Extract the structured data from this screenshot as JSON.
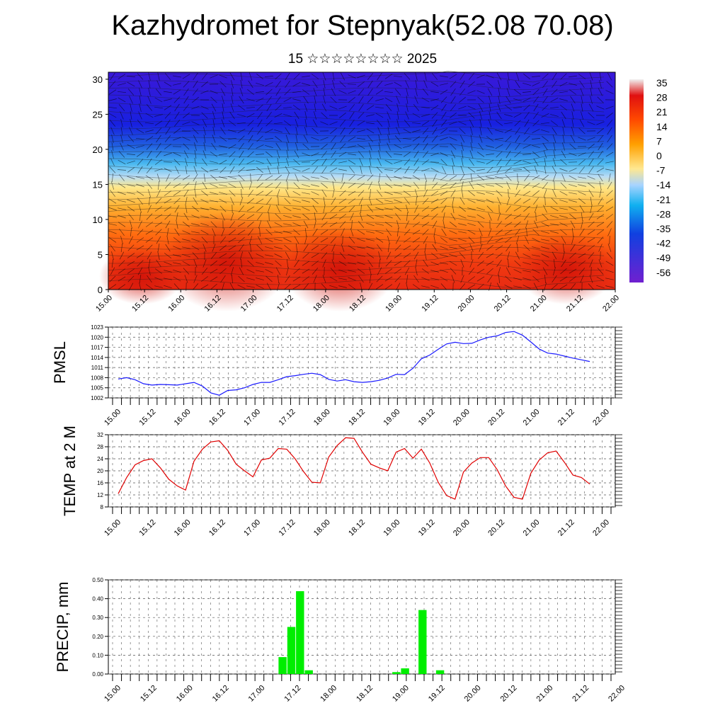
{
  "title": "Kazhydromet for Stepnyak(52.08 70.08)",
  "subtitle": "15 ☆☆☆☆☆☆☆☆ 2025",
  "x_tick_labels": [
    "15.00",
    "15.12",
    "16.00",
    "16.12",
    "17.00",
    "17.12",
    "18.00",
    "18.12",
    "19.00",
    "19.12",
    "20.00",
    "20.12",
    "21.00",
    "21.12",
    "22.00"
  ],
  "chart_data": [
    {
      "type": "heatmap",
      "name": "cross-section",
      "ylim": [
        0,
        31
      ],
      "y_ticks": [
        "0",
        "5",
        "10",
        "15",
        "20",
        "25",
        "30"
      ],
      "colorbar": {
        "labels": [
          "35",
          "28",
          "21",
          "14",
          "7",
          "0",
          "-7",
          "-14",
          "-21",
          "-28",
          "-35",
          "-42",
          "-49",
          "-56"
        ],
        "colors": [
          "#f0f0f0",
          "#e01010",
          "#ff5000",
          "#ffa000",
          "#ffe080",
          "#a0d0ff",
          "#10b0f0",
          "#1030d0",
          "#6020d0"
        ]
      },
      "note_values": "temperature-like field, warm near surface, cold aloft"
    },
    {
      "type": "line",
      "ylabel": "PMSL",
      "ylim": [
        1002,
        1023
      ],
      "y_ticks": [
        "1002",
        "1005",
        "1008",
        "1011",
        "1014",
        "1017",
        "1020",
        "1023"
      ],
      "color": "#1a1aff",
      "x": [
        0,
        1,
        2,
        3,
        4,
        5,
        6,
        7,
        8,
        9,
        10,
        11,
        12,
        13,
        14,
        15,
        16,
        17,
        18,
        19,
        20,
        21,
        22,
        23,
        24,
        25,
        26,
        27,
        28,
        29,
        30,
        31,
        32,
        33,
        34,
        35,
        36,
        37,
        38,
        39,
        40,
        41,
        42,
        43,
        44,
        45,
        46,
        47,
        48,
        49,
        50,
        51,
        52,
        53,
        54,
        55,
        56
      ],
      "values": [
        1007.6,
        1008.0,
        1007.4,
        1006.2,
        1005.8,
        1006.0,
        1005.9,
        1005.8,
        1006.2,
        1006.6,
        1005.5,
        1003.5,
        1002.8,
        1004.2,
        1004.4,
        1005.0,
        1006.0,
        1006.6,
        1006.6,
        1007.4,
        1008.3,
        1008.6,
        1009.0,
        1009.3,
        1008.9,
        1007.5,
        1007.0,
        1007.4,
        1006.8,
        1006.6,
        1006.8,
        1007.2,
        1007.9,
        1009.0,
        1008.9,
        1010.8,
        1013.6,
        1014.7,
        1016.4,
        1018.0,
        1018.5,
        1018.1,
        1018.2,
        1019.2,
        1020.0,
        1020.4,
        1021.4,
        1021.7,
        1020.6,
        1018.6,
        1016.5,
        1015.3,
        1015.0,
        1014.4,
        1013.8,
        1013.3,
        1012.8
      ]
    },
    {
      "type": "line",
      "ylabel": "TEMP at 2 M",
      "ylim": [
        8,
        32
      ],
      "y_ticks": [
        "8",
        "12",
        "16",
        "20",
        "24",
        "28",
        "32"
      ],
      "color": "#e00000",
      "x": [
        0,
        1,
        2,
        3,
        4,
        5,
        6,
        7,
        8,
        9,
        10,
        11,
        12,
        13,
        14,
        15,
        16,
        17,
        18,
        19,
        20,
        21,
        22,
        23,
        24,
        25,
        26,
        27,
        28,
        29,
        30,
        31,
        32,
        33,
        34,
        35,
        36,
        37,
        38,
        39,
        40,
        41,
        42,
        43,
        44,
        45,
        46,
        47,
        48,
        49,
        50,
        51,
        52,
        53,
        54,
        55,
        56
      ],
      "values": [
        12.4,
        17.8,
        22.0,
        23.4,
        24.0,
        21.0,
        17.2,
        15.0,
        13.6,
        23.2,
        27.2,
        29.6,
        30.0,
        26.8,
        22.2,
        20.0,
        18.0,
        23.6,
        24.2,
        27.4,
        27.2,
        24.0,
        19.8,
        16.2,
        16.0,
        24.6,
        28.4,
        31.0,
        30.8,
        26.2,
        22.2,
        21.0,
        20.0,
        26.2,
        27.4,
        24.2,
        27.2,
        22.6,
        16.2,
        11.8,
        10.6,
        19.6,
        22.6,
        24.4,
        24.4,
        20.4,
        15.0,
        11.2,
        10.6,
        19.2,
        23.6,
        26.0,
        26.6,
        22.8,
        18.6,
        17.8,
        15.6
      ]
    },
    {
      "type": "bar",
      "ylabel": "PRECIP, mm",
      "ylim": [
        0.0,
        0.5
      ],
      "y_ticks": [
        "0.00",
        "0.10",
        "0.20",
        "0.30",
        "0.40",
        "0.50"
      ],
      "color": "#00ee00",
      "x": [
        18,
        19,
        20,
        21,
        31,
        32,
        34,
        36
      ],
      "values": [
        0.09,
        0.25,
        0.44,
        0.02,
        0.01,
        0.03,
        0.34,
        0.02
      ]
    }
  ]
}
